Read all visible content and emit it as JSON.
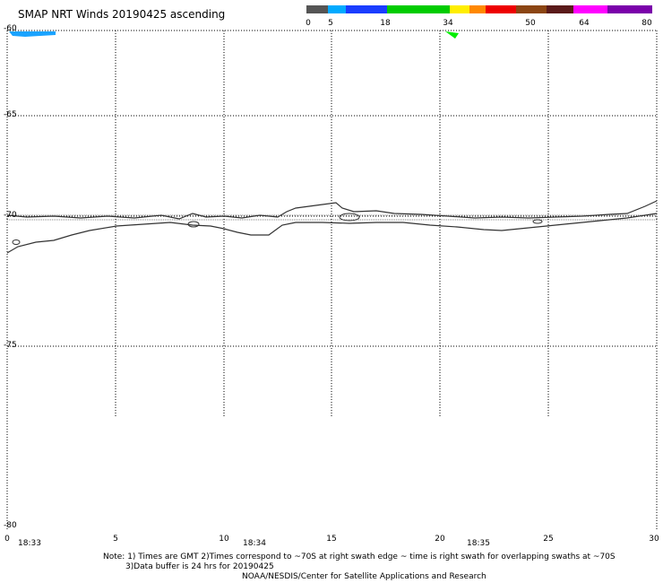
{
  "title": "SMAP NRT Winds 20190425 ascending",
  "colorbar": {
    "labels": [
      "0",
      "5",
      "18",
      "34",
      "50",
      "64",
      "80"
    ],
    "colors": [
      "#555555",
      "#00aaff",
      "#1a3dff",
      "#00cc00",
      "#ffee00",
      "#ff8800",
      "#ee0000",
      "#8b4513",
      "#5a1a1a",
      "#ff00ff",
      "#7a00aa"
    ]
  },
  "lat_labels": [
    "-60",
    "-65",
    "-70",
    "-75",
    "-80"
  ],
  "lon_labels": [
    "0",
    "5",
    "10",
    "15",
    "20",
    "25",
    "30"
  ],
  "times": [
    "18:33",
    "18:34",
    "18:35"
  ],
  "note": {
    "line1": "Note: 1) Times are GMT 2)Times correspond to ~70S at right swath edge ~ time is right swath for overlapping swaths at ~70S",
    "line2": "3)Data buffer is 24 hrs for 20190425",
    "line3": "NOAA/NESDIS/Center for Satellite Applications and Research"
  }
}
